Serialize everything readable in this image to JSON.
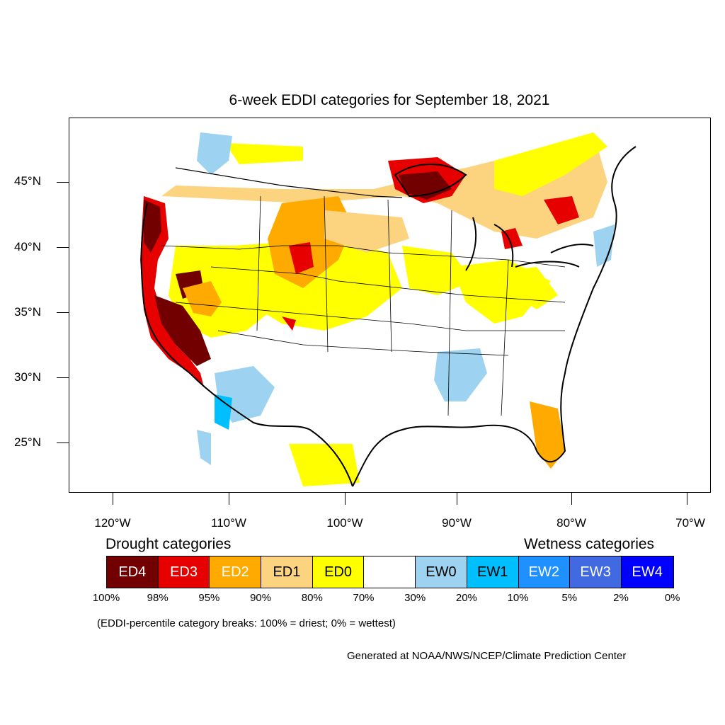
{
  "title": "6-week EDDI categories for September 18, 2021",
  "lat_labels": [
    "45°N",
    "40°N",
    "35°N",
    "30°N",
    "25°N"
  ],
  "lon_labels": [
    "120°W",
    "110°W",
    "100°W",
    "90°W",
    "80°W",
    "70°W"
  ],
  "legend": {
    "drought_heading": "Drought categories",
    "wetness_heading": "Wetness categories",
    "categories": [
      {
        "label": "ED4",
        "color": "#730000",
        "text_color": "#ffffff"
      },
      {
        "label": "ED3",
        "color": "#e60000",
        "text_color": "#ffffff"
      },
      {
        "label": "ED2",
        "color": "#ffaa00",
        "text_color": "#ffffff"
      },
      {
        "label": "ED1",
        "color": "#fcd37f",
        "text_color": "#000000"
      },
      {
        "label": "ED0",
        "color": "#ffff00",
        "text_color": "#000000"
      },
      {
        "label": "",
        "color": "#ffffff",
        "text_color": "#000000"
      },
      {
        "label": "EW0",
        "color": "#9dd3f0",
        "text_color": "#000000"
      },
      {
        "label": "EW1",
        "color": "#00bfff",
        "text_color": "#000000"
      },
      {
        "label": "EW2",
        "color": "#1e90ff",
        "text_color": "#ffffff"
      },
      {
        "label": "EW3",
        "color": "#4169e1",
        "text_color": "#ffffff"
      },
      {
        "label": "EW4",
        "color": "#0000ff",
        "text_color": "#ffffff"
      }
    ],
    "percent_breaks": [
      "100%",
      "98%",
      "95%",
      "90%",
      "80%",
      "70%",
      "30%",
      "20%",
      "10%",
      "5%",
      "2%",
      "0%"
    ]
  },
  "note": "(EDDI-percentile category breaks: 100% = driest; 0% = wettest)",
  "credit": "Generated at NOAA/NWS/NCEP/Climate Prediction Center"
}
